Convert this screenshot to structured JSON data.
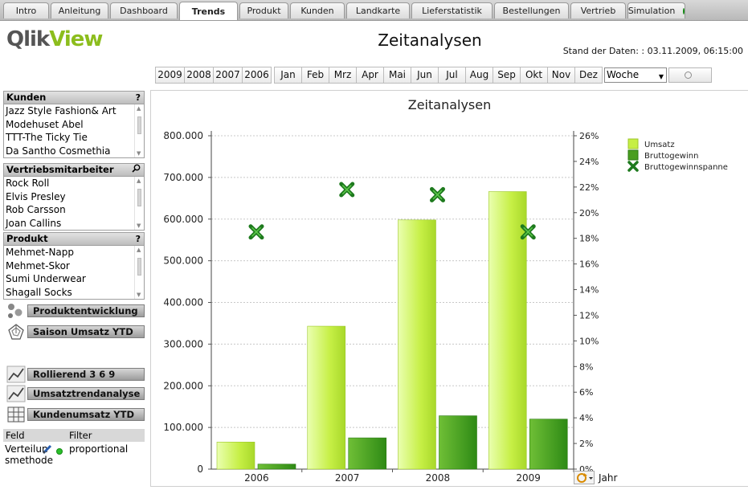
{
  "tabs": [
    {
      "label": "Intro"
    },
    {
      "label": "Anleitung"
    },
    {
      "label": "Dashboard"
    },
    {
      "label": "Trends",
      "active": true
    },
    {
      "label": "Produkt"
    },
    {
      "label": "Kunden"
    },
    {
      "label": "Landkarte"
    },
    {
      "label": "Lieferstatistik"
    },
    {
      "label": "Bestellungen"
    },
    {
      "label": "Vertrieb"
    },
    {
      "label": "Simulation"
    }
  ],
  "header": {
    "logo_q": "Qlik",
    "logo_v": "View",
    "title": "Zeitanalysen",
    "stand": "Stand der Daten: : 03.11.2009, 06:15:00"
  },
  "time_selector": {
    "years": [
      "2009",
      "2008",
      "2007",
      "2006"
    ],
    "months": [
      "Jan",
      "Feb",
      "Mrz",
      "Apr",
      "Mai",
      "Jun",
      "Jul",
      "Aug",
      "Sep",
      "Okt",
      "Nov",
      "Dez"
    ],
    "granularity": "Woche"
  },
  "listboxes": {
    "kunden": {
      "title": "Kunden",
      "icon": "?",
      "items": [
        "Jazz Style Fashion& Art",
        "Modehuset Abel",
        "TTT-The Ticky Tie",
        "Da Santho Cosmethia"
      ]
    },
    "vertrieb": {
      "title": "Vertriebsmitarbeiter",
      "items": [
        "Rock Roll",
        "Elvis Presley",
        "Rob Carsson",
        "Joan Callins"
      ]
    },
    "produkt": {
      "title": "Produkt",
      "icon": "?",
      "items": [
        "Mehmet-Napp",
        "Mehmet-Skor",
        "Sumi Underwear",
        "Shagall Socks"
      ]
    }
  },
  "buttons": {
    "produktentwicklung": "Produktentwicklung",
    "saison": "Saison Umsatz YTD",
    "rollierend": "Rollierend 3 6 9",
    "umsatztrend": "Umsatztrendanalyse",
    "kundenumsatz": "Kundenumsatz YTD"
  },
  "feld_table": {
    "header_feld": "Feld",
    "header_filter": "Filter",
    "row_feld": "Verteilungsmethode",
    "row_feld_line1": "Verteilun",
    "row_feld_line2": "smethode",
    "row_filter": "proportional"
  },
  "chart_data": {
    "type": "bar",
    "title": "Zeitanalysen",
    "categories": [
      "2006",
      "2007",
      "2008",
      "2009"
    ],
    "xlabel": "Jahr",
    "series": [
      {
        "name": "Umsatz",
        "values": [
          65000,
          343000,
          598000,
          666000
        ],
        "color": "#b8e636",
        "axis": "left"
      },
      {
        "name": "Bruttogewinn",
        "values": [
          12000,
          75000,
          128000,
          120000
        ],
        "color": "#4a9e1f",
        "axis": "left"
      },
      {
        "name": "Bruttogewinnspanne",
        "values": [
          18.5,
          21.8,
          21.4,
          18.5
        ],
        "marker": "x",
        "color": "#1e7a1e",
        "axis": "right"
      }
    ],
    "ylim_left": [
      0,
      800000
    ],
    "yticks_left": [
      "0",
      "100.000",
      "200.000",
      "300.000",
      "400.000",
      "500.000",
      "600.000",
      "700.000",
      "800.000"
    ],
    "ylim_right": [
      0,
      26
    ],
    "yticks_right": [
      "0%",
      "2%",
      "4%",
      "6%",
      "8%",
      "10%",
      "12%",
      "14%",
      "16%",
      "18%",
      "20%",
      "22%",
      "24%",
      "26%"
    ],
    "grid": true,
    "legend": "top-right"
  }
}
